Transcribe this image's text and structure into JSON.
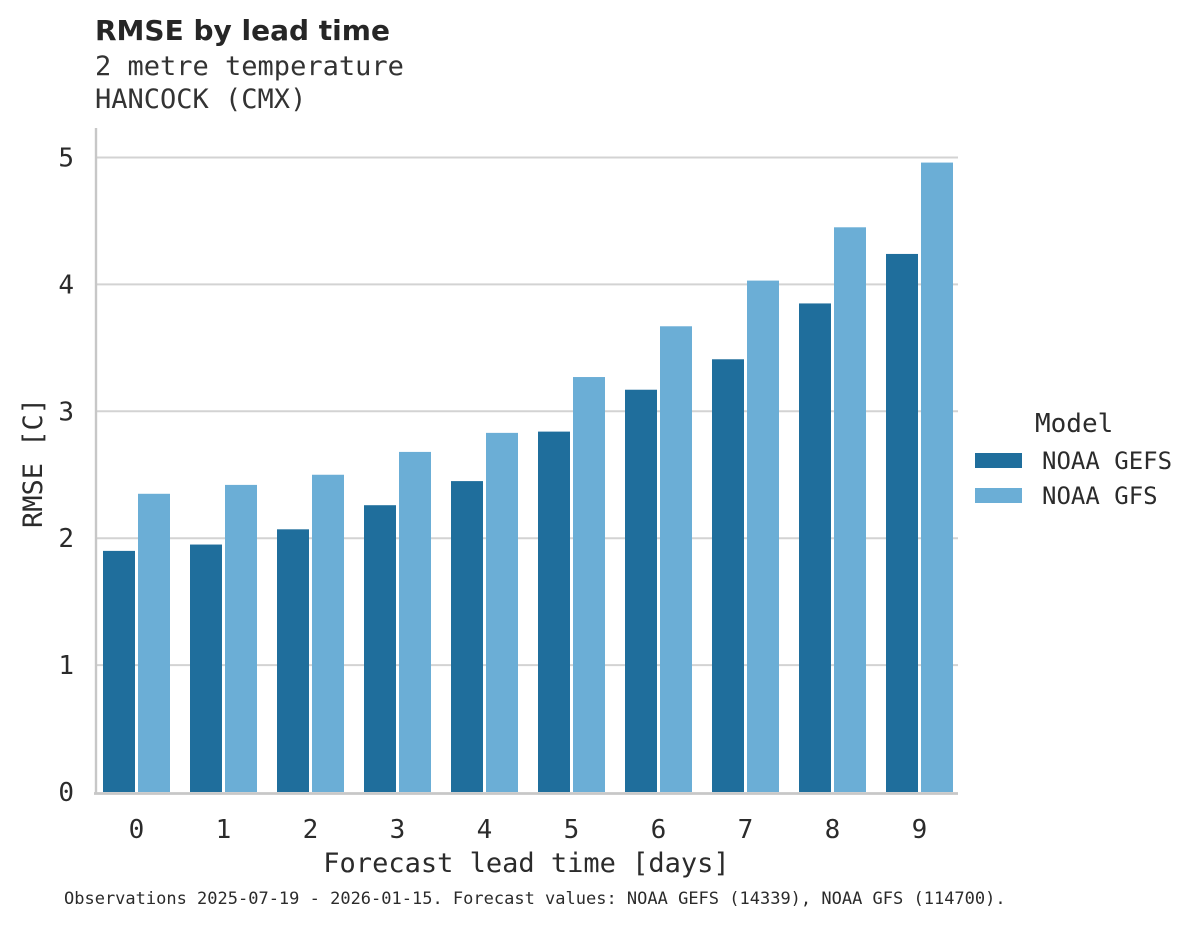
{
  "header": {
    "title": "RMSE by lead time",
    "subtitle": "2 metre temperature",
    "station": "HANCOCK (CMX)"
  },
  "chart_data": {
    "type": "bar",
    "title": "RMSE by lead time",
    "subtitle": "2 metre temperature",
    "station": "HANCOCK (CMX)",
    "xlabel": "Forecast lead time [days]",
    "ylabel": "RMSE [C]",
    "categories": [
      "0",
      "1",
      "2",
      "3",
      "4",
      "5",
      "6",
      "7",
      "8",
      "9"
    ],
    "series": [
      {
        "name": "NOAA GEFS",
        "color": "#1F6E9C",
        "values": [
          1.9,
          1.95,
          2.07,
          2.26,
          2.45,
          2.84,
          3.17,
          3.41,
          3.85,
          4.24
        ]
      },
      {
        "name": "NOAA GFS",
        "color": "#6BAED6",
        "values": [
          2.35,
          2.42,
          2.5,
          2.68,
          2.83,
          3.27,
          3.67,
          4.03,
          4.45,
          4.96
        ]
      }
    ],
    "ylim": [
      0,
      5
    ],
    "yticks": [
      0,
      1,
      2,
      3,
      4,
      5
    ],
    "grid": true,
    "legend_title": "Model",
    "legend_position": "right",
    "grid_color": "#d3d3d3",
    "spine_color": "#c7c7c7"
  },
  "legend": {
    "title": "Model",
    "items": [
      {
        "label": "NOAA GEFS",
        "color": "#1F6E9C"
      },
      {
        "label": "NOAA GFS",
        "color": "#6BAED6"
      }
    ]
  },
  "caption": "Observations 2025-07-19 - 2026-01-15. Forecast values: NOAA GEFS (14339), NOAA GFS (114700)."
}
